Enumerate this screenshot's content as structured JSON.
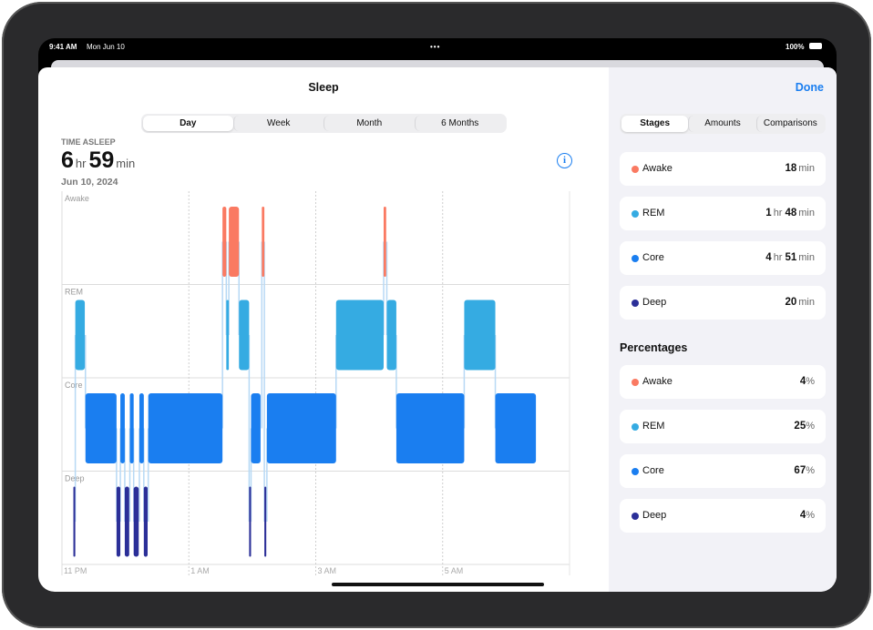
{
  "status_bar": {
    "time": "9:41 AM",
    "date": "Mon Jun 10",
    "battery": "100%"
  },
  "header": {
    "title": "Sleep",
    "done": "Done"
  },
  "period_tabs": {
    "items": [
      "Day",
      "Week",
      "Month",
      "6 Months"
    ],
    "selected": "Day"
  },
  "summary": {
    "label": "TIME ASLEEP",
    "hours": "6",
    "hours_unit": "hr",
    "minutes": "59",
    "minutes_unit": "min",
    "date": "Jun 10, 2024"
  },
  "sleep_chart": {
    "stages": [
      {
        "name": "Awake",
        "color": "#fa7a62"
      },
      {
        "name": "REM",
        "color": "#35abe2"
      },
      {
        "name": "Core",
        "color": "#1a7ef0"
      },
      {
        "name": "Deep",
        "color": "#2b2f98"
      }
    ],
    "xlim": [
      23,
      31
    ],
    "xticks": [
      {
        "value": 23,
        "label": "11 PM"
      },
      {
        "value": 25,
        "label": "1 AM"
      },
      {
        "value": 27,
        "label": "3 AM"
      },
      {
        "value": 29,
        "label": "5 AM"
      }
    ],
    "segments": [
      {
        "stage": "Deep",
        "start": 23.18,
        "end": 23.21
      },
      {
        "stage": "REM",
        "start": 23.21,
        "end": 23.36
      },
      {
        "stage": "Core",
        "start": 23.37,
        "end": 23.86
      },
      {
        "stage": "Deep",
        "start": 23.86,
        "end": 23.92
      },
      {
        "stage": "Core",
        "start": 23.92,
        "end": 23.99
      },
      {
        "stage": "Deep",
        "start": 23.99,
        "end": 24.06
      },
      {
        "stage": "Core",
        "start": 24.07,
        "end": 24.13
      },
      {
        "stage": "Deep",
        "start": 24.13,
        "end": 24.21
      },
      {
        "stage": "Core",
        "start": 24.22,
        "end": 24.29
      },
      {
        "stage": "Deep",
        "start": 24.29,
        "end": 24.35
      },
      {
        "stage": "Core",
        "start": 24.36,
        "end": 25.53
      },
      {
        "stage": "Awake",
        "start": 25.53,
        "end": 25.59
      },
      {
        "stage": "REM",
        "start": 25.59,
        "end": 25.63
      },
      {
        "stage": "Awake",
        "start": 25.63,
        "end": 25.79
      },
      {
        "stage": "REM",
        "start": 25.79,
        "end": 25.95
      },
      {
        "stage": "Deep",
        "start": 25.95,
        "end": 25.98
      },
      {
        "stage": "Core",
        "start": 25.98,
        "end": 26.13
      },
      {
        "stage": "Awake",
        "start": 26.15,
        "end": 26.19
      },
      {
        "stage": "Deep",
        "start": 26.19,
        "end": 26.22
      },
      {
        "stage": "Core",
        "start": 26.23,
        "end": 27.32
      },
      {
        "stage": "REM",
        "start": 27.32,
        "end": 28.07
      },
      {
        "stage": "Awake",
        "start": 28.07,
        "end": 28.11
      },
      {
        "stage": "REM",
        "start": 28.12,
        "end": 28.27
      },
      {
        "stage": "Core",
        "start": 28.27,
        "end": 29.34
      },
      {
        "stage": "REM",
        "start": 29.34,
        "end": 29.83
      },
      {
        "stage": "Core",
        "start": 29.83,
        "end": 30.47
      }
    ]
  },
  "sidebar": {
    "tabs": {
      "items": [
        "Stages",
        "Amounts",
        "Comparisons"
      ],
      "selected": "Stages"
    },
    "stages": [
      {
        "name": "Awake",
        "color": "#fa7a62",
        "parts": [
          {
            "value": "18",
            "unit": "min"
          }
        ]
      },
      {
        "name": "REM",
        "color": "#35abe2",
        "parts": [
          {
            "value": "1",
            "unit": "hr"
          },
          {
            "value": "48",
            "unit": "min"
          }
        ]
      },
      {
        "name": "Core",
        "color": "#1a7ef0",
        "parts": [
          {
            "value": "4",
            "unit": "hr"
          },
          {
            "value": "51",
            "unit": "min"
          }
        ]
      },
      {
        "name": "Deep",
        "color": "#2b2f98",
        "parts": [
          {
            "value": "20",
            "unit": "min"
          }
        ]
      }
    ],
    "percentages_title": "Percentages",
    "percentages": [
      {
        "name": "Awake",
        "color": "#fa7a62",
        "value": "4",
        "unit": "%"
      },
      {
        "name": "REM",
        "color": "#35abe2",
        "value": "25",
        "unit": "%"
      },
      {
        "name": "Core",
        "color": "#1a7ef0",
        "value": "67",
        "unit": "%"
      },
      {
        "name": "Deep",
        "color": "#2b2f98",
        "value": "4",
        "unit": "%"
      }
    ]
  }
}
